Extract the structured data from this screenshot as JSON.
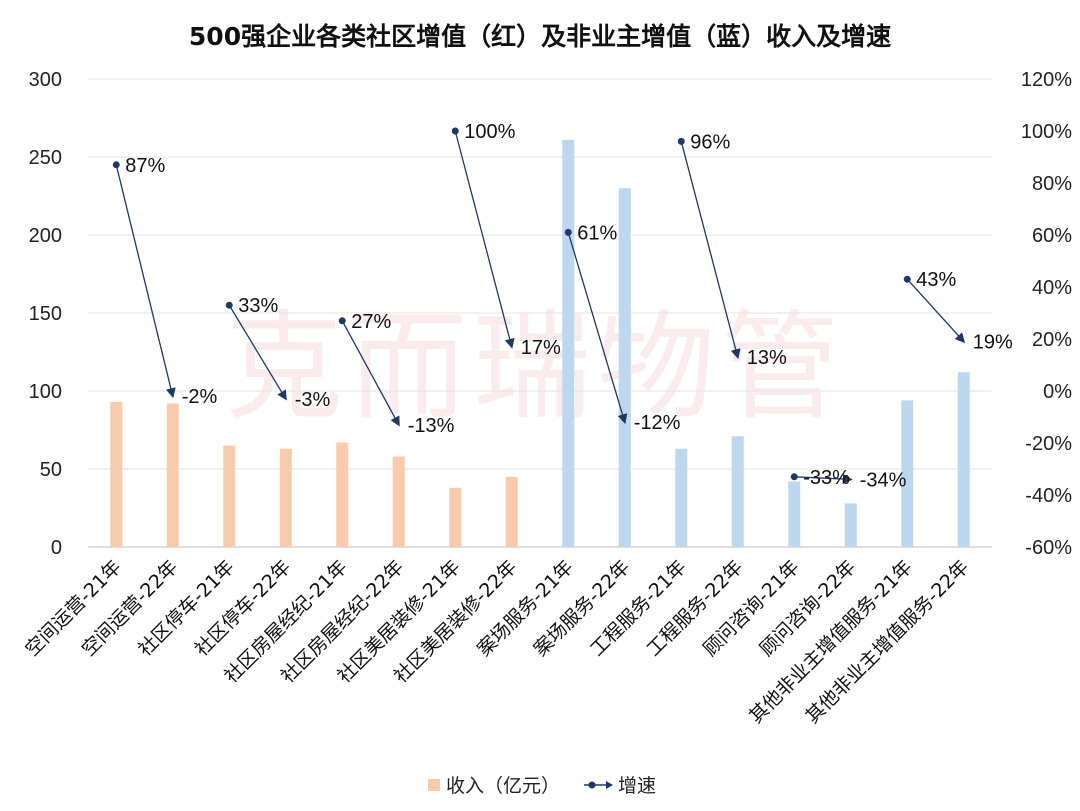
{
  "chart_data": {
    "type": "bar",
    "title": "500强企业各类社区增值（红）及非业主增值（蓝）收入及增速",
    "categories": [
      "空间运营-21年",
      "空间运营-22年",
      "社区停车-21年",
      "社区停车-22年",
      "社区房屋经纪-21年",
      "社区房屋经纪-22年",
      "社区美居装修-21年",
      "社区美居装修-22年",
      "案场服务-21年",
      "案场服务-22年",
      "工程服务-21年",
      "工程服务-22年",
      "顾问咨询-21年",
      "顾问咨询-22年",
      "其他非业主增值服务-21年",
      "其他非业主增值服务-22年"
    ],
    "series": [
      {
        "name": "收入（亿元）",
        "axis": "left",
        "values": [
          93,
          92,
          65,
          63,
          67,
          58,
          38,
          45,
          261,
          230,
          63,
          71,
          42,
          28,
          94,
          112
        ]
      },
      {
        "name": "增速",
        "axis": "right",
        "values": [
          87,
          -2,
          33,
          -3,
          27,
          -13,
          100,
          17,
          61,
          -12,
          96,
          13,
          -33,
          -34,
          43,
          19
        ]
      }
    ],
    "growth_labels": [
      "87%",
      "-2%",
      "33%",
      "-3%",
      "27%",
      "-13%",
      "100%",
      "17%",
      "61%",
      "-12%",
      "96%",
      "13%",
      "-33%",
      "-34%",
      "43%",
      "19%"
    ],
    "bar_colors": [
      "#f8cbad",
      "#f8cbad",
      "#f8cbad",
      "#f8cbad",
      "#f8cbad",
      "#f8cbad",
      "#f8cbad",
      "#f8cbad",
      "#bdd7ee",
      "#bdd7ee",
      "#bdd7ee",
      "#bdd7ee",
      "#bdd7ee",
      "#bdd7ee",
      "#bdd7ee",
      "#bdd7ee"
    ],
    "line_color": "#1f3864",
    "y_left": {
      "min": 0,
      "max": 300,
      "step": 50,
      "ticks": [
        "0",
        "50",
        "100",
        "150",
        "200",
        "250",
        "300"
      ]
    },
    "y_right": {
      "min": -60,
      "max": 120,
      "step": 20,
      "ticks": [
        "-60%",
        "-40%",
        "-20%",
        "0%",
        "20%",
        "40%",
        "60%",
        "80%",
        "100%",
        "120%"
      ]
    },
    "grid": true,
    "legend_position": "bottom",
    "watermark": "克而瑞物管"
  }
}
